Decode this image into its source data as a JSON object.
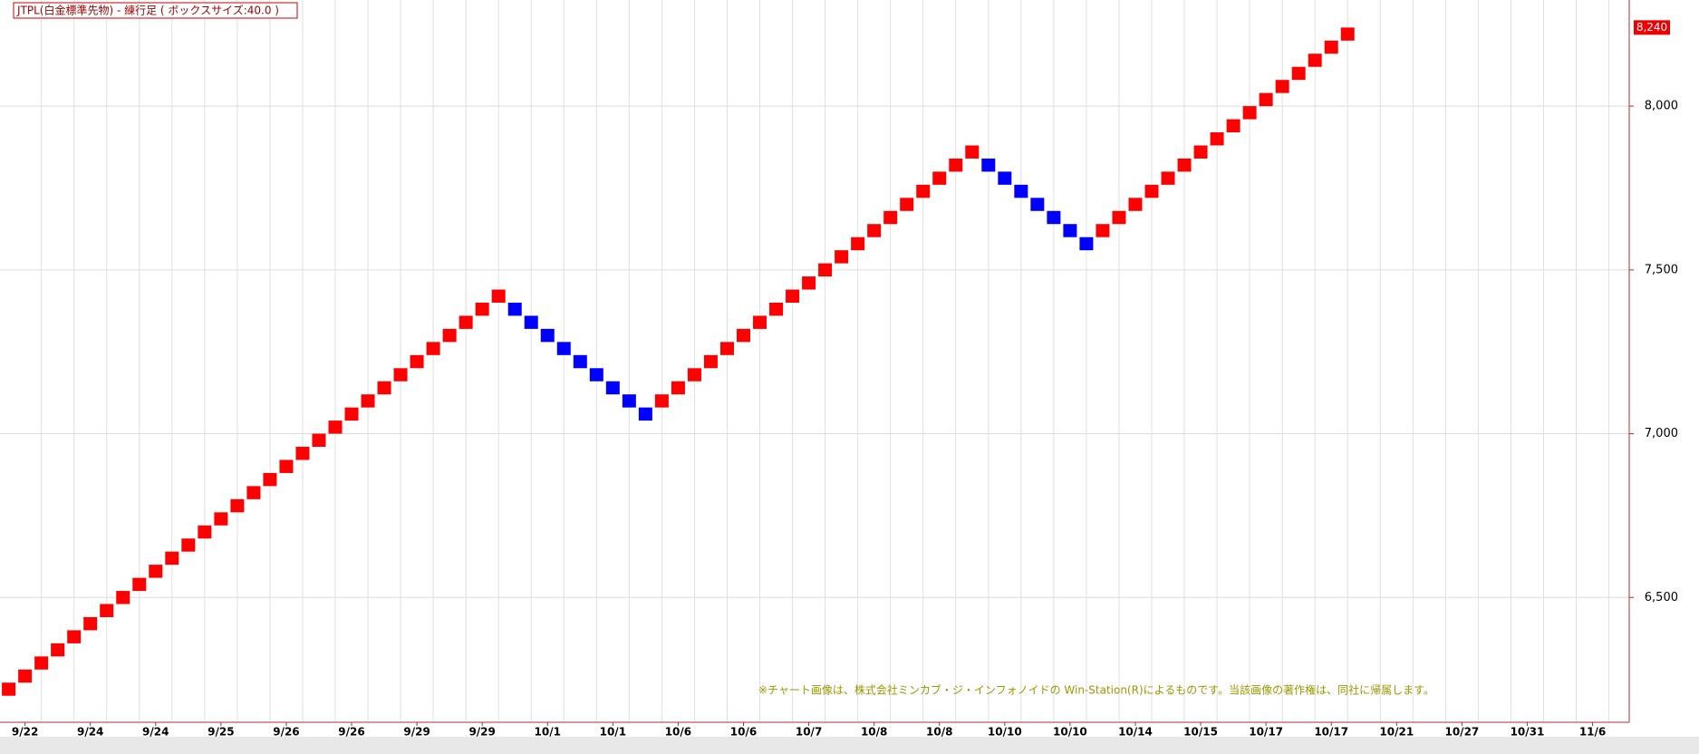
{
  "chart_data": {
    "type": "renko",
    "title": "JTPL(白金標準先物) - 練行足 ( ボックスサイズ:40.0 )",
    "box_size": 40,
    "values": [
      6200,
      6240,
      6280,
      6320,
      6360,
      6400,
      6440,
      6480,
      6520,
      6560,
      6600,
      6640,
      6680,
      6720,
      6760,
      6800,
      6840,
      6880,
      6920,
      6960,
      7000,
      7040,
      7080,
      7120,
      7160,
      7200,
      7240,
      7280,
      7320,
      7360,
      7400,
      7360,
      7320,
      7280,
      7240,
      7200,
      7160,
      7120,
      7080,
      7040,
      7080,
      7120,
      7160,
      7200,
      7240,
      7280,
      7320,
      7360,
      7400,
      7440,
      7480,
      7520,
      7560,
      7600,
      7640,
      7680,
      7720,
      7760,
      7800,
      7840,
      7800,
      7760,
      7720,
      7680,
      7640,
      7600,
      7560,
      7600,
      7640,
      7680,
      7720,
      7760,
      7800,
      7840,
      7880,
      7920,
      7960,
      8000,
      8040,
      8080,
      8120,
      8160,
      8200
    ],
    "up_color": "#ff0000",
    "down_color": "#0000ff",
    "x_labels": [
      "9/22",
      "9/24",
      "9/24",
      "9/25",
      "9/26",
      "9/26",
      "9/29",
      "9/29",
      "10/1",
      "10/1",
      "10/6",
      "10/6",
      "10/7",
      "10/8",
      "10/8",
      "10/10",
      "10/10",
      "10/14",
      "10/15",
      "10/17",
      "10/17",
      "10/21",
      "10/27",
      "10/31",
      "11/6"
    ],
    "ylim": [
      6119,
      8324
    ],
    "yticks": [
      {
        "value": 6500,
        "label": "6,500"
      },
      {
        "value": 7000,
        "label": "7,000"
      },
      {
        "value": 7500,
        "label": "7,500"
      },
      {
        "value": 8000,
        "label": "8,000"
      }
    ],
    "last_price": {
      "value": 8240,
      "label": "8,240"
    },
    "grid": true,
    "note": "※チャート画像は、株式会社ミンカブ・ジ・インフォノイドの Win-Station(R)によるものです。当該画像の著作権は、同社に帰属します。"
  }
}
